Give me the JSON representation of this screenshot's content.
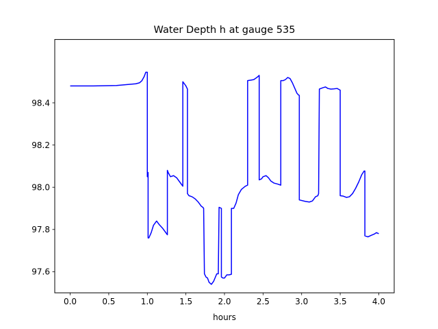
{
  "chart_data": {
    "type": "line",
    "title": "Water Depth h at gauge 535",
    "xlabel": "hours",
    "ylabel": "",
    "xlim": [
      -0.2,
      4.2
    ],
    "ylim": [
      97.5,
      98.7
    ],
    "grid": false,
    "xticks": [
      0.0,
      0.5,
      1.0,
      1.5,
      2.0,
      2.5,
      3.0,
      3.5,
      4.0
    ],
    "xtick_labels": [
      "0.0",
      "0.5",
      "1.0",
      "1.5",
      "2.0",
      "2.5",
      "3.0",
      "3.5",
      "4.0"
    ],
    "yticks": [
      97.6,
      97.8,
      98.0,
      98.2,
      98.4
    ],
    "ytick_labels": [
      "97.6",
      "97.8",
      "98.0",
      "98.2",
      "98.4"
    ],
    "series": [
      {
        "color": "#0000ff",
        "x": [
          0.0,
          0.3,
          0.6,
          0.85,
          0.9,
          0.93,
          0.96,
          0.98,
          1.0,
          1.0,
          1.01,
          1.01,
          1.01,
          1.02,
          1.05,
          1.08,
          1.12,
          1.15,
          1.2,
          1.26,
          1.26,
          1.27,
          1.3,
          1.34,
          1.38,
          1.42,
          1.46,
          1.46,
          1.5,
          1.52,
          1.52,
          1.54,
          1.58,
          1.62,
          1.66,
          1.7,
          1.72,
          1.73,
          1.74,
          1.76,
          1.78,
          1.8,
          1.83,
          1.86,
          1.9,
          1.92,
          1.93,
          1.96,
          1.96,
          1.98,
          2.0,
          2.03,
          2.06,
          2.06,
          2.09,
          2.09,
          2.12,
          2.15,
          2.18,
          2.22,
          2.27,
          2.3,
          2.3,
          2.35,
          2.38,
          2.42,
          2.45,
          2.45,
          2.48,
          2.5,
          2.54,
          2.57,
          2.6,
          2.64,
          2.69,
          2.73,
          2.73,
          2.76,
          2.79,
          2.82,
          2.85,
          2.88,
          2.91,
          2.94,
          2.96,
          2.97,
          2.97,
          3.05,
          3.1,
          3.14,
          3.18,
          3.21,
          3.22,
          3.23,
          3.25,
          3.28,
          3.31,
          3.34,
          3.38,
          3.42,
          3.46,
          3.49,
          3.5,
          3.5,
          3.54,
          3.58,
          3.62,
          3.66,
          3.7,
          3.74,
          3.78,
          3.81,
          3.82,
          3.82,
          3.86,
          3.9,
          3.94,
          3.97,
          4.0
        ],
        "values": [
          98.48,
          98.48,
          98.482,
          98.49,
          98.495,
          98.505,
          98.525,
          98.545,
          98.545,
          98.05,
          98.07,
          98.06,
          97.76,
          97.76,
          97.785,
          97.82,
          97.84,
          97.825,
          97.805,
          97.775,
          98.08,
          98.07,
          98.05,
          98.055,
          98.045,
          98.025,
          98.005,
          98.5,
          98.48,
          98.465,
          97.97,
          97.96,
          97.955,
          97.945,
          97.93,
          97.91,
          97.905,
          97.9,
          97.59,
          97.575,
          97.57,
          97.55,
          97.54,
          97.555,
          97.59,
          97.59,
          97.905,
          97.9,
          97.575,
          97.57,
          97.57,
          97.585,
          97.585,
          97.585,
          97.588,
          97.9,
          97.9,
          97.925,
          97.965,
          97.99,
          98.005,
          98.01,
          98.505,
          98.508,
          98.51,
          98.52,
          98.53,
          98.035,
          98.04,
          98.05,
          98.055,
          98.045,
          98.03,
          98.02,
          98.015,
          98.01,
          98.505,
          98.505,
          98.51,
          98.52,
          98.515,
          98.495,
          98.47,
          98.445,
          98.437,
          98.435,
          97.94,
          97.933,
          97.93,
          97.935,
          97.955,
          97.96,
          97.97,
          98.465,
          98.468,
          98.472,
          98.475,
          98.468,
          98.465,
          98.466,
          98.468,
          98.462,
          98.46,
          97.96,
          97.958,
          97.952,
          97.955,
          97.97,
          97.995,
          98.025,
          98.06,
          98.077,
          98.077,
          97.77,
          97.765,
          97.772,
          97.778,
          97.785,
          97.78
        ],
        "_note_removed": true
      }
    ]
  }
}
